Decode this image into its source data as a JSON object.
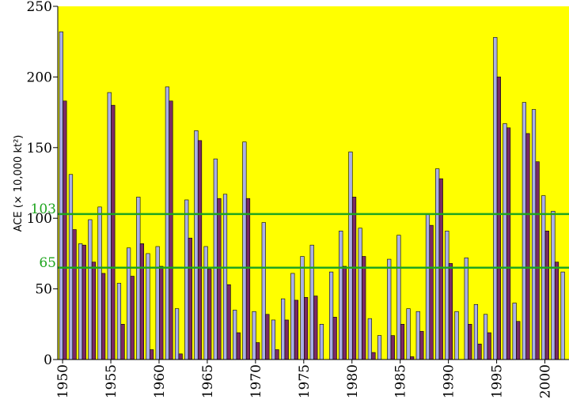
{
  "chart_data": {
    "type": "bar",
    "y_label": "ACE (× 10,000 kt²)",
    "categories": [
      "1950",
      null,
      null,
      null,
      null,
      "1955",
      null,
      null,
      null,
      null,
      "1960",
      null,
      null,
      null,
      null,
      "1965",
      null,
      null,
      null,
      null,
      "1970",
      null,
      null,
      null,
      null,
      "1975",
      null,
      null,
      null,
      null,
      "1980",
      null,
      null,
      null,
      null,
      "1985",
      null,
      null,
      null,
      null,
      "1990",
      null,
      null,
      null,
      null,
      "1995",
      null,
      null,
      null,
      null,
      "2000",
      null,
      null
    ],
    "series": [
      {
        "color": "#a9aee6",
        "values": [
          232,
          131,
          82,
          99,
          108,
          189,
          54,
          79,
          115,
          75,
          80,
          193,
          36,
          113,
          162,
          80,
          142,
          117,
          35,
          154,
          34,
          97,
          28,
          43,
          61,
          73,
          81,
          25,
          62,
          91,
          147,
          93,
          29,
          17,
          71,
          88,
          36,
          34,
          103,
          135,
          91,
          34,
          72,
          39,
          32,
          228,
          167,
          40,
          182,
          177,
          116,
          105,
          62
        ]
      },
      {
        "color": "#7b2a63",
        "values": [
          183,
          92,
          81,
          69,
          61,
          180,
          25,
          59,
          82,
          7,
          66,
          183,
          4,
          86,
          155,
          64,
          114,
          53,
          19,
          114,
          12,
          32,
          7,
          28,
          42,
          44,
          45,
          0,
          30,
          66,
          115,
          73,
          5,
          0,
          17,
          25,
          2,
          20,
          95,
          128,
          68,
          0,
          25,
          11,
          19,
          200,
          164,
          27,
          160,
          140,
          91,
          69,
          null
        ]
      }
    ],
    "hlines": [
      103,
      65
    ],
    "hline_color": "#1fa51f",
    "ylim": [
      0,
      250
    ],
    "yticks": [
      0,
      50,
      100,
      150,
      200,
      250
    ],
    "plot_background": "#ffff00"
  }
}
